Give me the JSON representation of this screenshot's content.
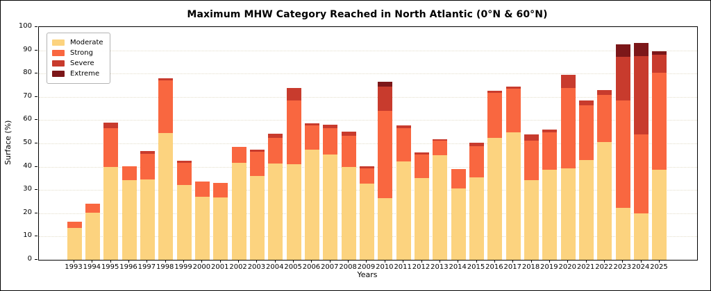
{
  "chart_data": {
    "type": "bar",
    "stacked": true,
    "title": "Maximum MHW Category Reached in North Atlantic (0°N & 60°N)",
    "xlabel": "Years",
    "ylabel": "Surface (%)",
    "ylim": [
      0,
      100
    ],
    "yticks": [
      0,
      10,
      20,
      30,
      40,
      50,
      60,
      70,
      80,
      90,
      100
    ],
    "grid": "horizontal-dotted",
    "legend_position": "upper-left",
    "categories": [
      "1993",
      "1994",
      "1995",
      "1996",
      "1997",
      "1998",
      "1999",
      "2000",
      "2001",
      "2002",
      "2003",
      "2004",
      "2005",
      "2006",
      "2007",
      "2008",
      "2009",
      "2010",
      "2011",
      "2012",
      "2013",
      "2014",
      "2015",
      "2016",
      "2017",
      "2018",
      "2019",
      "2020",
      "2021",
      "2022",
      "2023",
      "2024",
      "2025"
    ],
    "series": [
      {
        "name": "Moderate",
        "color": "#FCD37F",
        "values": [
          13.8,
          20.2,
          39.9,
          34.3,
          34.6,
          54.5,
          32.0,
          27.0,
          26.7,
          41.8,
          36.1,
          41.3,
          41.1,
          47.3,
          45.3,
          39.8,
          32.8,
          26.5,
          42.4,
          35.1,
          45.0,
          30.6,
          35.4,
          52.5,
          54.7,
          34.3,
          38.8,
          39.3,
          43.0,
          50.7,
          22.2,
          19.9,
          38.8
        ]
      },
      {
        "name": "Strong",
        "color": "#F96740",
        "values": [
          2.5,
          3.8,
          16.6,
          5.8,
          10.9,
          22.6,
          9.6,
          6.5,
          6.4,
          6.8,
          10.3,
          11.2,
          27.3,
          10.3,
          11.2,
          13.5,
          6.6,
          37.5,
          14.1,
          10.0,
          6.1,
          8.5,
          13.4,
          19.1,
          18.8,
          16.9,
          16.0,
          34.5,
          23.4,
          20.1,
          46.2,
          34.1,
          41.5
        ]
      },
      {
        "name": "Severe",
        "color": "#C83B2D",
        "values": [
          0,
          0,
          2.3,
          0,
          1.2,
          0.9,
          0.9,
          0,
          0,
          0,
          0.9,
          1.8,
          5.3,
          1.0,
          1.6,
          1.9,
          0.9,
          10.4,
          1.1,
          0.9,
          0.6,
          0,
          1.4,
          1.1,
          0.9,
          2.6,
          1.1,
          5.7,
          2.0,
          2.0,
          18.8,
          33.4,
          7.9
        ]
      },
      {
        "name": "Extreme",
        "color": "#7C1719",
        "values": [
          0,
          0,
          0,
          0,
          0,
          0,
          0,
          0,
          0,
          0,
          0,
          0,
          0,
          0,
          0,
          0,
          0,
          2.0,
          0,
          0,
          0,
          0,
          0,
          0,
          0,
          0,
          0,
          0,
          0,
          0,
          5.4,
          5.8,
          1.3
        ]
      }
    ]
  }
}
